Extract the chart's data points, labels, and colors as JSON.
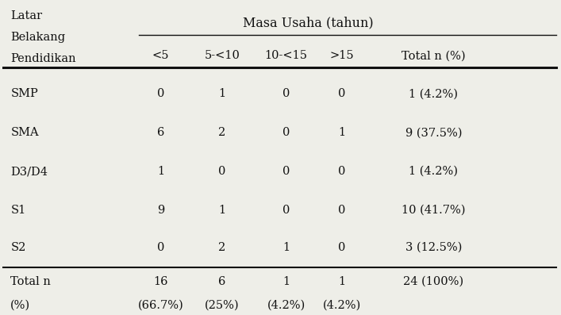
{
  "title_header": "Masa Usaha (tahun)",
  "col_header_left_lines": [
    "Latar",
    "Belakang",
    "Pendidikan"
  ],
  "col_headers": [
    "<5",
    "5-<10",
    "10-<15",
    ">15",
    "Total n (%)"
  ],
  "rows": [
    {
      "label": "SMP",
      "values": [
        "0",
        "1",
        "0",
        "0",
        "1 (4.2%)"
      ]
    },
    {
      "label": "SMA",
      "values": [
        "6",
        "2",
        "0",
        "1",
        "9 (37.5%)"
      ]
    },
    {
      "label": "D3/D4",
      "values": [
        "1",
        "0",
        "0",
        "0",
        "1 (4.2%)"
      ]
    },
    {
      "label": "S1",
      "values": [
        "9",
        "1",
        "0",
        "0",
        "10 (41.7%)"
      ]
    },
    {
      "label": "S2",
      "values": [
        "0",
        "2",
        "1",
        "0",
        "3 (12.5%)"
      ]
    },
    {
      "label_lines": [
        "Total n",
        "(%)"
      ],
      "values": [
        "16",
        "6",
        "1",
        "1",
        "24 (100%)"
      ],
      "values_pct": [
        "(66.7%)",
        "(25%)",
        "(4.2%)",
        "(4.2%)",
        ""
      ]
    }
  ],
  "bg_color": "#eeeee8",
  "text_color": "#111111",
  "font_size": 10.5,
  "font_size_header": 11.5
}
